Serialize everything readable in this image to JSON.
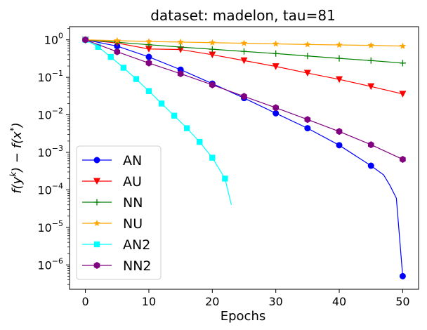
{
  "chart_data": {
    "type": "line",
    "title": "dataset: madelon, tau=81",
    "xlabel": "Epochs",
    "ylabel": "f(y^k) − f(x^*)",
    "yscale": "log",
    "xlim": [
      -2.5,
      52.5
    ],
    "ylim_log10": [
      -6.65,
      0.35
    ],
    "xticks": [
      0,
      10,
      20,
      30,
      40,
      50
    ],
    "xtick_labels": [
      "0",
      "10",
      "20",
      "30",
      "40",
      "50"
    ],
    "yticks_exp": [
      0,
      -1,
      -2,
      -3,
      -4,
      -5,
      -6
    ],
    "ytick_labels": [
      {
        "base": "10",
        "exp": "0"
      },
      {
        "base": "10",
        "exp": "−1"
      },
      {
        "base": "10",
        "exp": "−2"
      },
      {
        "base": "10",
        "exp": "−3"
      },
      {
        "base": "10",
        "exp": "−4"
      },
      {
        "base": "10",
        "exp": "−5"
      },
      {
        "base": "10",
        "exp": "−6"
      }
    ],
    "grid": false,
    "legend_position": "lower-left",
    "series": [
      {
        "name": "AN",
        "color": "#0000ff",
        "marker": "circle",
        "x": [
          0,
          5,
          10,
          15,
          20,
          25,
          30,
          35,
          40,
          45,
          47,
          48,
          49,
          50
        ],
        "y": [
          1.0,
          0.68,
          0.35,
          0.16,
          0.068,
          0.028,
          0.011,
          0.0044,
          0.00155,
          0.00044,
          0.00025,
          0.00013,
          6e-05,
          5e-07
        ],
        "marker_indices": [
          0,
          1,
          2,
          3,
          4,
          5,
          6,
          7,
          8,
          9,
          13
        ]
      },
      {
        "name": "AU",
        "color": "#ff0000",
        "marker": "triangle-down",
        "x": [
          0,
          5,
          10,
          15,
          20,
          25,
          30,
          35,
          40,
          45,
          50
        ],
        "y": [
          1.0,
          0.82,
          0.57,
          0.55,
          0.4,
          0.28,
          0.195,
          0.13,
          0.088,
          0.057,
          0.036
        ],
        "marker_indices": [
          0,
          1,
          2,
          3,
          4,
          5,
          6,
          7,
          8,
          9,
          10
        ]
      },
      {
        "name": "NN",
        "color": "#008000",
        "marker": "plus",
        "x": [
          0,
          5,
          10,
          15,
          20,
          25,
          30,
          35,
          40,
          45,
          50
        ],
        "y": [
          1.0,
          0.86,
          0.74,
          0.64,
          0.56,
          0.49,
          0.43,
          0.37,
          0.32,
          0.28,
          0.24
        ],
        "marker_indices": [
          0,
          1,
          2,
          3,
          4,
          5,
          6,
          7,
          8,
          9,
          10
        ]
      },
      {
        "name": "NU",
        "color": "#ffa500",
        "marker": "star",
        "x": [
          0,
          5,
          10,
          15,
          20,
          25,
          30,
          35,
          40,
          45,
          50
        ],
        "y": [
          1.0,
          0.95,
          0.9,
          0.87,
          0.84,
          0.81,
          0.78,
          0.75,
          0.73,
          0.71,
          0.68
        ],
        "marker_indices": [
          0,
          1,
          2,
          3,
          4,
          5,
          6,
          7,
          8,
          9,
          10
        ]
      },
      {
        "name": "AN2",
        "color": "#00ffff",
        "marker": "square",
        "x": [
          0,
          2,
          4,
          6,
          8,
          10,
          12,
          14,
          16,
          18,
          20,
          22,
          23
        ],
        "y": [
          1.0,
          0.65,
          0.35,
          0.18,
          0.09,
          0.043,
          0.02,
          0.0095,
          0.0044,
          0.0019,
          0.00072,
          0.0002,
          4e-05
        ],
        "marker_indices": [
          0,
          1,
          2,
          3,
          4,
          5,
          6,
          7,
          8,
          9,
          10,
          11
        ]
      },
      {
        "name": "NN2",
        "color": "#800080",
        "marker": "hexagon",
        "x": [
          0,
          5,
          10,
          15,
          20,
          25,
          30,
          35,
          40,
          45,
          50
        ],
        "y": [
          1.0,
          0.48,
          0.24,
          0.125,
          0.063,
          0.031,
          0.0155,
          0.0075,
          0.0036,
          0.0016,
          0.00065
        ],
        "marker_indices": [
          0,
          1,
          2,
          3,
          4,
          5,
          6,
          7,
          8,
          9,
          10
        ]
      }
    ]
  }
}
